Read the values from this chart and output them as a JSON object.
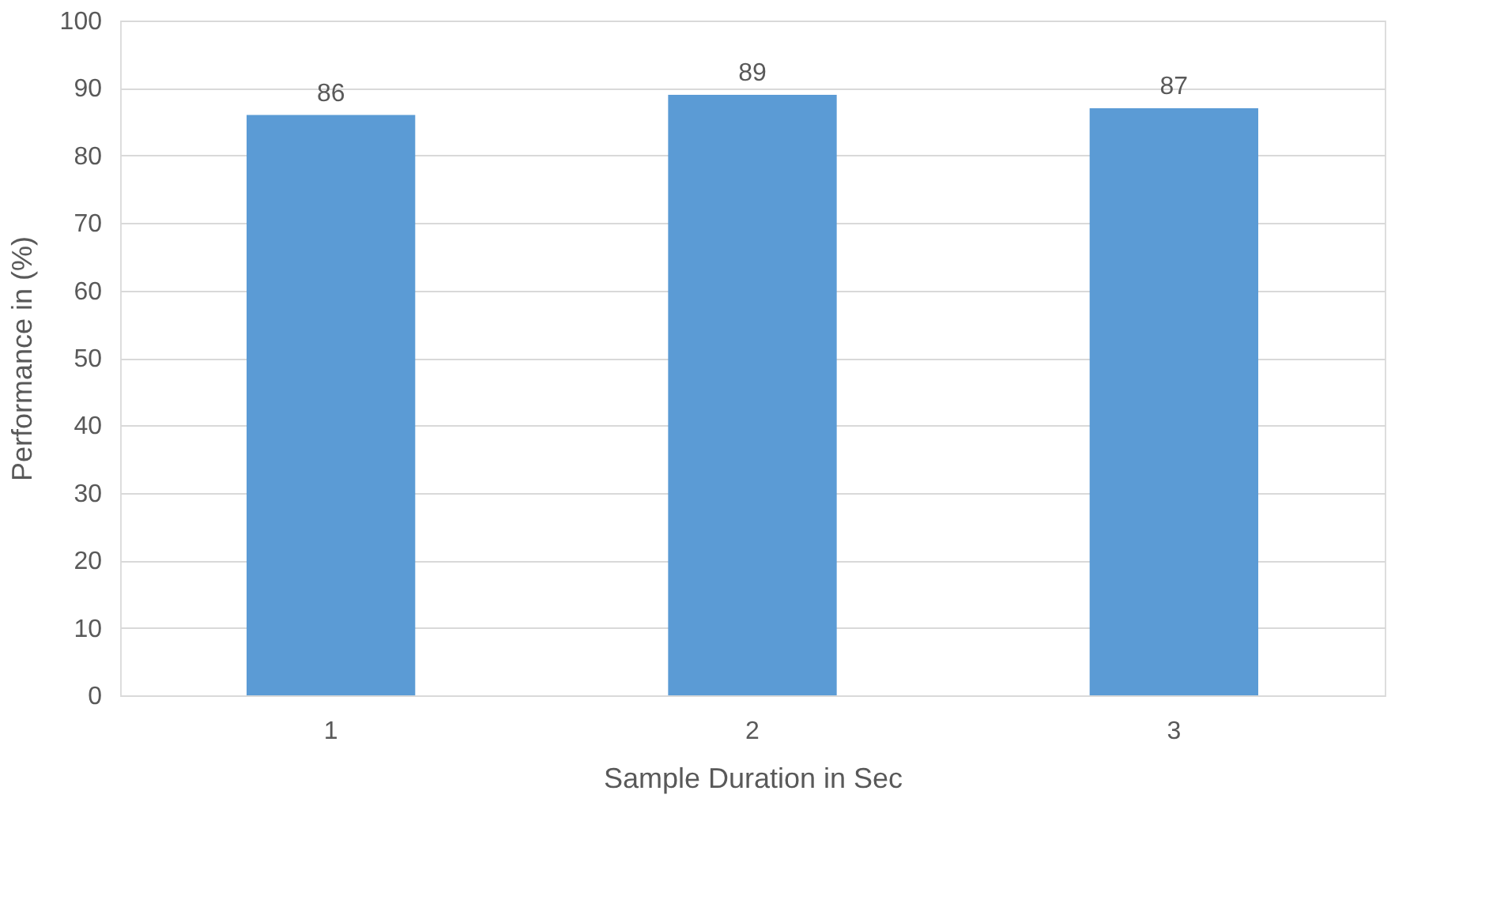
{
  "chart_data": {
    "type": "bar",
    "xlabel": "Sample Duration in Sec",
    "ylabel": "Performance in (%)",
    "categories": [
      "1",
      "2",
      "3"
    ],
    "values": [
      86,
      89,
      87
    ],
    "color": "#5b9bd5",
    "ylim": [
      0,
      100
    ],
    "yticks": [
      0,
      10,
      20,
      30,
      40,
      50,
      60,
      70,
      80,
      90,
      100
    ],
    "grid": "y",
    "data_labels": true
  }
}
